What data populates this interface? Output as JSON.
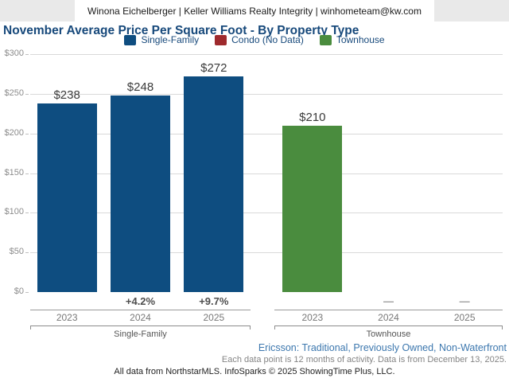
{
  "header": {
    "contact": "Winona Eichelberger | Keller Williams Realty Integrity | winhometeam@kw.com"
  },
  "title": "November Average Price Per Square Foot - By Property Type",
  "legend": [
    {
      "label": "Single-Family",
      "color": "#0e4d80"
    },
    {
      "label": "Condo (No Data)",
      "color": "#9e2a2d"
    },
    {
      "label": "Townhouse",
      "color": "#4a8c3e"
    }
  ],
  "chart_data": {
    "type": "bar",
    "title": "November Average Price Per Square Foot - By Property Type",
    "xlabel": "",
    "ylabel": "",
    "ylim": [
      0,
      300
    ],
    "ytick_interval": 50,
    "yticks": [
      {
        "value": 300,
        "label": "$300"
      },
      {
        "value": 250,
        "label": "$250"
      },
      {
        "value": 200,
        "label": "$200"
      },
      {
        "value": 150,
        "label": "$150"
      },
      {
        "value": 100,
        "label": "$100"
      },
      {
        "value": 50,
        "label": "$50"
      },
      {
        "value": 0,
        "label": "$0"
      }
    ],
    "grid": true,
    "legend_position": "top",
    "groups": [
      {
        "name": "Single-Family",
        "color": "#0e4d80",
        "categories": [
          "2023",
          "2024",
          "2025"
        ],
        "values": [
          238,
          248,
          272
        ],
        "value_labels": [
          "$238",
          "$248",
          "$272"
        ],
        "change_labels": [
          "",
          "+4.2%",
          "+9.7%"
        ]
      },
      {
        "name": "Townhouse",
        "color": "#4a8c3e",
        "categories": [
          "2023",
          "2024",
          "2025"
        ],
        "values": [
          210,
          null,
          null
        ],
        "value_labels": [
          "$210",
          "",
          ""
        ],
        "change_labels": [
          "",
          "—",
          "—"
        ]
      }
    ]
  },
  "footer": {
    "filter_line": "Ericsson: Traditional, Previously Owned, Non-Waterfront",
    "data_note": "Each data point is 12 months of activity. Data is from December 13, 2025.",
    "attribution": "All data from NorthstarMLS. InfoSparks © 2025 ShowingTime Plus, LLC."
  }
}
